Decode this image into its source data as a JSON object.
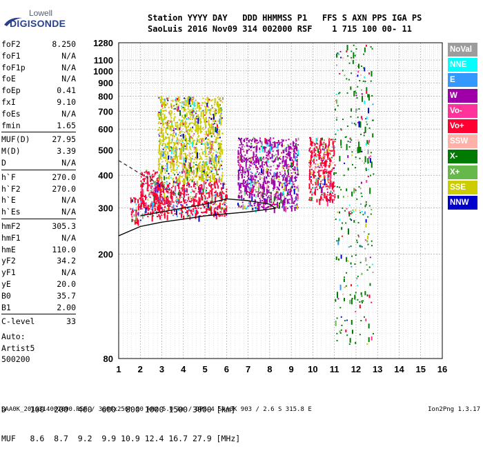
{
  "logo": {
    "line1": "Lowell",
    "line2": "DIGISONDE"
  },
  "header": {
    "row1": "Station YYYY DAY   DDD HHMMSS P1   FFS S AXN PPS IGA PS",
    "row2": "SaoLuis 2016 Nov09 314 002000 RSF    1 715 100 00- 11"
  },
  "params": [
    {
      "group": [
        {
          "name": "foF2",
          "value": "8.250"
        },
        {
          "name": "foF1",
          "value": "N/A"
        },
        {
          "name": "foF1p",
          "value": "N/A"
        },
        {
          "name": "foE",
          "value": "N/A"
        },
        {
          "name": "foEp",
          "value": "0.41"
        },
        {
          "name": "fxI",
          "value": "9.10"
        },
        {
          "name": "foEs",
          "value": "N/A"
        },
        {
          "name": "fmin",
          "value": "1.65"
        }
      ]
    },
    {
      "group": [
        {
          "name": "MUF(D)",
          "value": "27.95"
        },
        {
          "name": "M(D)",
          "value": "3.39"
        },
        {
          "name": "D",
          "value": "N/A"
        }
      ]
    },
    {
      "group": [
        {
          "name": "h`F",
          "value": "270.0"
        },
        {
          "name": "h`F2",
          "value": "270.0"
        },
        {
          "name": "h`E",
          "value": "N/A"
        },
        {
          "name": "h`Es",
          "value": "N/A"
        }
      ]
    },
    {
      "group": [
        {
          "name": "hmF2",
          "value": "305.3"
        },
        {
          "name": "hmF1",
          "value": "N/A"
        },
        {
          "name": "hmE",
          "value": "110.0"
        },
        {
          "name": "yF2",
          "value": "34.2"
        },
        {
          "name": "yF1",
          "value": "N/A"
        },
        {
          "name": "yE",
          "value": "20.0"
        },
        {
          "name": "B0",
          "value": "35.7"
        },
        {
          "name": "B1",
          "value": "2.00"
        }
      ]
    },
    {
      "group": [
        {
          "name": "C-level",
          "value": "33"
        }
      ]
    }
  ],
  "auto_block": {
    "line1": "Auto:",
    "line2": "Artist5",
    "line3": "500200"
  },
  "legend": [
    {
      "label": "NoVal",
      "color": "#9c9c9c"
    },
    {
      "label": "NNE",
      "color": "#00ffff"
    },
    {
      "label": "E",
      "color": "#3399ff"
    },
    {
      "label": "W",
      "color": "#a000a8"
    },
    {
      "label": "Vo-",
      "color": "#ff3399"
    },
    {
      "label": "Vo+",
      "color": "#ff0033"
    },
    {
      "label": "SSW",
      "color": "#ffb0a8"
    },
    {
      "label": "X-",
      "color": "#007a00"
    },
    {
      "label": "X+",
      "color": "#66b84a"
    },
    {
      "label": "SSE",
      "color": "#cccc00"
    },
    {
      "label": "NNW",
      "color": "#0000cc"
    }
  ],
  "muf_table": {
    "d_row": "D     100  200  400  600  800 1000 1500 3000 [km]",
    "muf_row": "MUF   8.6  8.7  9.2  9.9 10.9 12.4 16.7 27.9 [MHz]"
  },
  "footer": "SAA0K_2016314002000.RSF / 300fx256h 50 kHz 5.0 km / DPS-4 SAA0K 903 / 2.6 S 315.8 E",
  "version": "Ion2Png 1.3.17",
  "chart_data": {
    "type": "scatter",
    "title": "",
    "xlabel": "",
    "ylabel": "",
    "x_ticks": [
      1,
      2,
      3,
      4,
      5,
      6,
      7,
      8,
      9,
      10,
      11,
      12,
      13,
      14,
      15,
      16
    ],
    "y_ticks": [
      80,
      200,
      300,
      400,
      500,
      600,
      700,
      800,
      900,
      1000,
      1100,
      1280
    ],
    "xlim": [
      1,
      16
    ],
    "ylim": [
      80,
      1280
    ],
    "y_scale": "log",
    "grid": true,
    "legend_position": "right",
    "series": [
      {
        "name": "NoVal",
        "color": "#9c9c9c"
      },
      {
        "name": "NNE",
        "color": "#00ffff"
      },
      {
        "name": "E",
        "color": "#3399ff"
      },
      {
        "name": "W",
        "color": "#a000a8"
      },
      {
        "name": "Vo-",
        "color": "#ff3399"
      },
      {
        "name": "Vo+",
        "color": "#ff0033"
      },
      {
        "name": "SSW",
        "color": "#ffb0a8"
      },
      {
        "name": "X-",
        "color": "#007a00"
      },
      {
        "name": "X+",
        "color": "#66b84a"
      },
      {
        "name": "SSE",
        "color": "#cccc00"
      },
      {
        "name": "NNW",
        "color": "#0000cc"
      }
    ],
    "echo_regions": [
      {
        "x": [
          1.5,
          2.0
        ],
        "y": [
          270,
          330
        ],
        "dominant": "Vo+"
      },
      {
        "x": [
          2.0,
          3.0
        ],
        "y": [
          280,
          420
        ],
        "dominant": "Vo+"
      },
      {
        "x": [
          2.8,
          5.8
        ],
        "y": [
          380,
          800
        ],
        "dominant": "SSE"
      },
      {
        "x": [
          2.5,
          6.0
        ],
        "y": [
          280,
          380
        ],
        "dominant": "Vo+"
      },
      {
        "x": [
          6.5,
          9.3
        ],
        "y": [
          300,
          560
        ],
        "dominant": "W"
      },
      {
        "x": [
          9.8,
          11.0
        ],
        "y": [
          320,
          560
        ],
        "dominant": "Vo+"
      },
      {
        "x": [
          11.0,
          12.8
        ],
        "y": [
          90,
          1260
        ],
        "dominant": "X-"
      }
    ],
    "profile_curve": {
      "x": [
        1.0,
        2.0,
        3.0,
        4.0,
        5.0,
        6.0,
        7.0,
        8.0,
        8.3
      ],
      "y": [
        235,
        255,
        265,
        272,
        280,
        285,
        290,
        297,
        300
      ]
    },
    "x_trace": {
      "x": [
        1.0,
        1.5,
        2.0,
        2.5,
        3.0,
        3.5,
        4.0
      ],
      "y": [
        455,
        430,
        405,
        385,
        365,
        345,
        330
      ]
    },
    "o_trace": {
      "x": [
        2.0,
        3.0,
        4.0,
        5.0,
        6.0,
        7.0,
        8.0,
        8.25
      ],
      "y": [
        280,
        290,
        300,
        310,
        325,
        320,
        310,
        300
      ]
    }
  }
}
